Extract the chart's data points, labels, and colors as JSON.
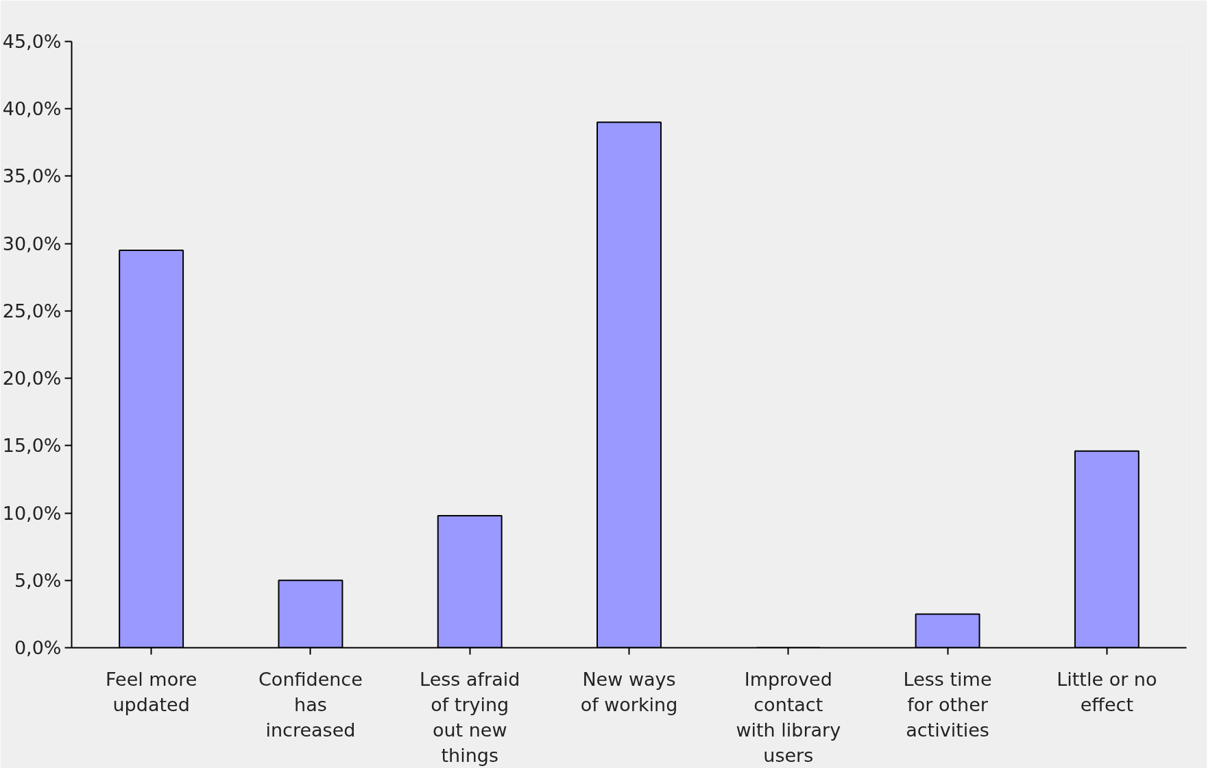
{
  "chart_data": {
    "type": "bar",
    "categories": [
      "Feel more\nupdated",
      "Confidence\nhas\nincreased",
      "Less afraid\nof trying\nout new\nthings",
      "New ways\nof working",
      "Improved\ncontact\nwith library\nusers",
      "Less time\nfor other\nactivities",
      "Little or no\neffect"
    ],
    "values": [
      29.5,
      5.0,
      9.8,
      39.0,
      0,
      2.5,
      14.6
    ],
    "color": "#9999ff",
    "ylim": [
      0,
      45
    ],
    "yticks": [
      {
        "value": 0,
        "label": "0,0%"
      },
      {
        "value": 5,
        "label": "5,0%"
      },
      {
        "value": 10,
        "label": "10,0%"
      },
      {
        "value": 15,
        "label": "15,0%"
      },
      {
        "value": 20,
        "label": "20,0%"
      },
      {
        "value": 25,
        "label": "25,0%"
      },
      {
        "value": 30,
        "label": "30,0%"
      },
      {
        "value": 35,
        "label": "35,0%"
      },
      {
        "value": 40,
        "label": "40,0%"
      },
      {
        "value": 45,
        "label": "45,0%"
      }
    ],
    "grid": false
  }
}
